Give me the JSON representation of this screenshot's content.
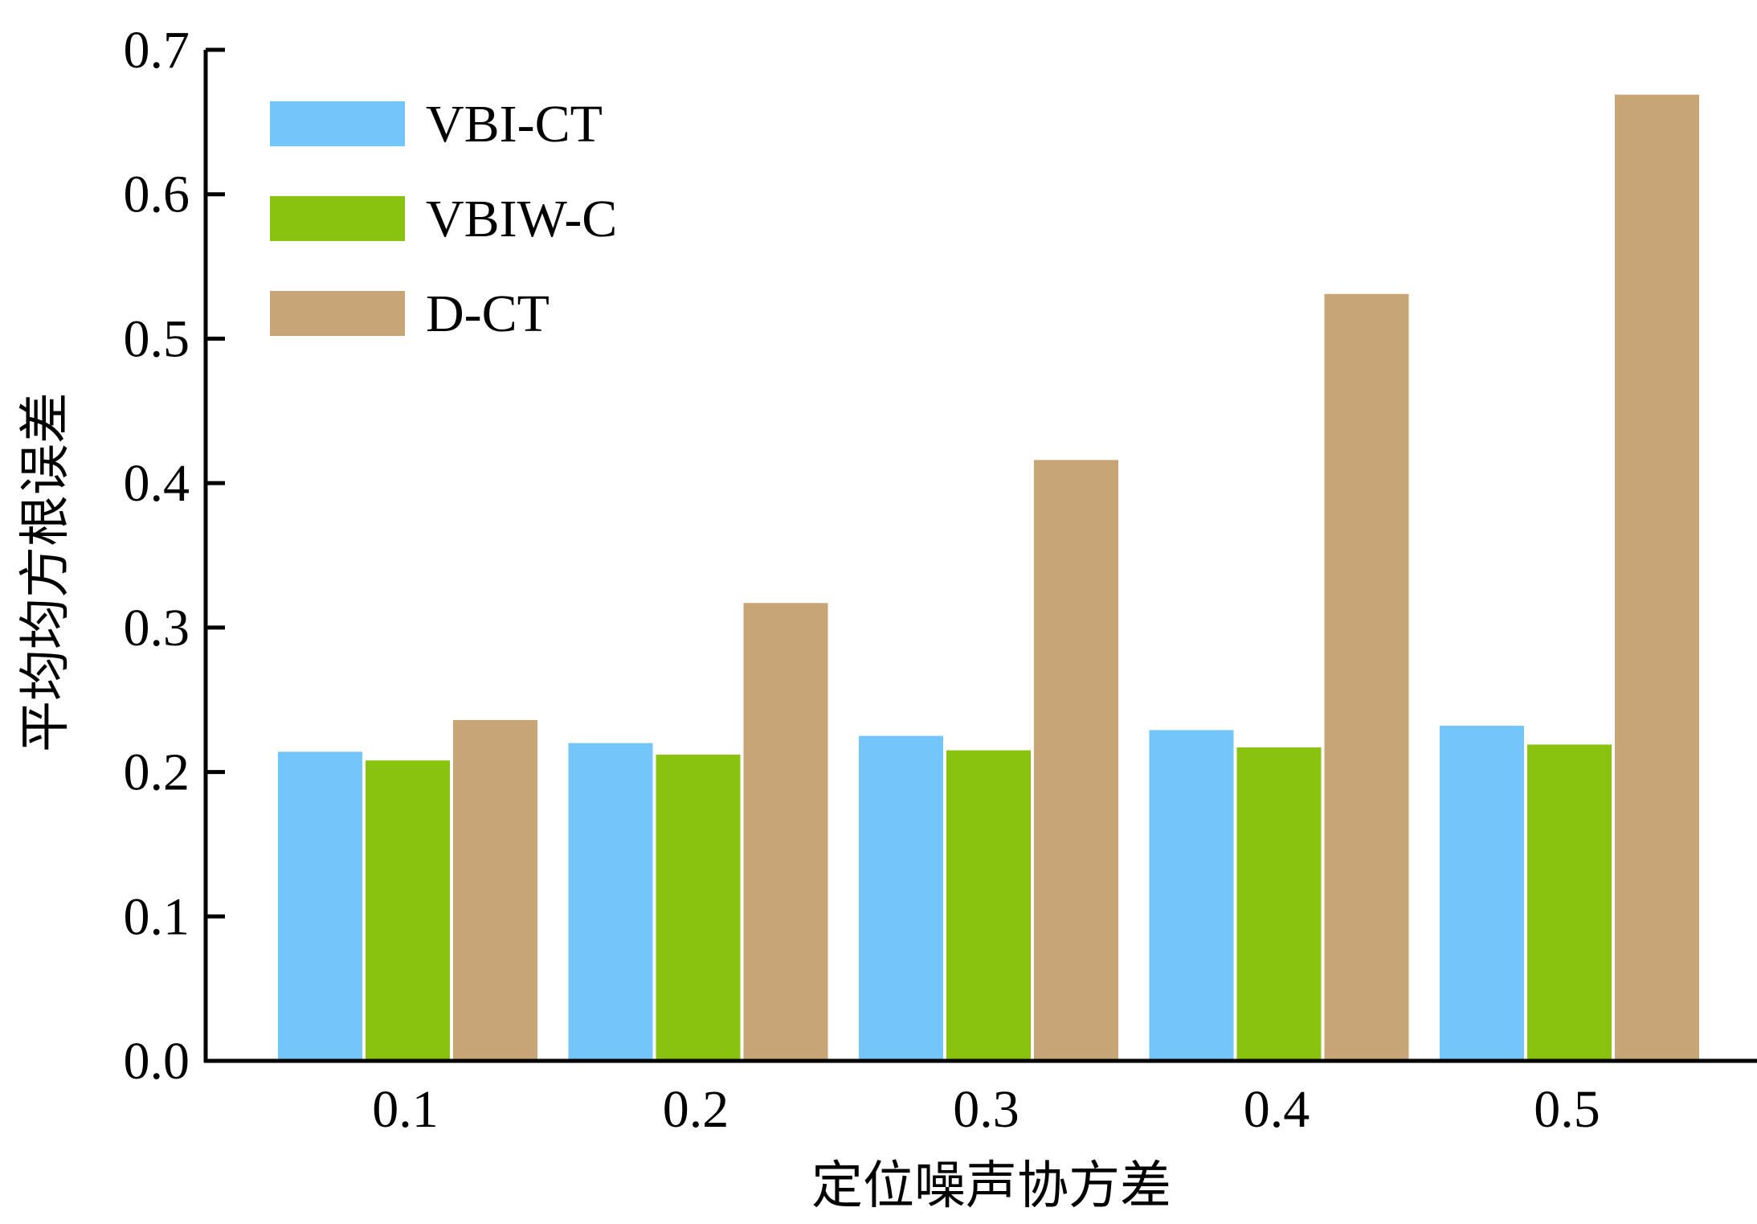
{
  "chart_data": {
    "type": "bar",
    "xlabel": "定位噪声协方差",
    "ylabel": "平均均方根误差",
    "categories": [
      "0.1",
      "0.2",
      "0.3",
      "0.4",
      "0.5"
    ],
    "series": [
      {
        "name": "VBI-CT",
        "color": "#73c5fa",
        "values": [
          0.214,
          0.22,
          0.225,
          0.229,
          0.232
        ]
      },
      {
        "name": "VBIW-C",
        "color": "#89c310",
        "values": [
          0.208,
          0.212,
          0.215,
          0.217,
          0.219
        ]
      },
      {
        "name": "D-CT",
        "color": "#c8a577",
        "values": [
          0.236,
          0.317,
          0.416,
          0.531,
          0.669
        ]
      }
    ],
    "ylim": [
      0.0,
      0.7
    ],
    "yticks": [
      "0.0",
      "0.1",
      "0.2",
      "0.3",
      "0.4",
      "0.5",
      "0.6",
      "0.7"
    ],
    "legend": "top-left",
    "grid": false
  }
}
